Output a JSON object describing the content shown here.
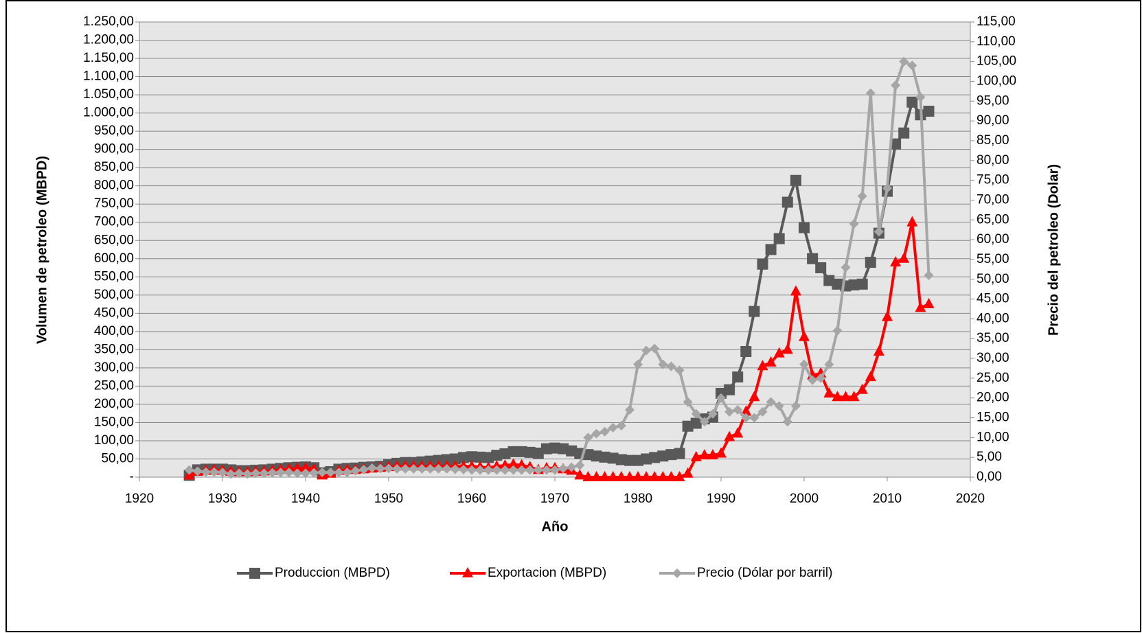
{
  "chart_data": {
    "type": "line",
    "xlabel": "Año",
    "ylabel": "Volumen de petroleo (MBPD)",
    "y2label": "Precio del petroleo (Dolar)",
    "x": [
      1926,
      1927,
      1928,
      1929,
      1930,
      1931,
      1932,
      1933,
      1934,
      1935,
      1936,
      1937,
      1938,
      1939,
      1940,
      1941,
      1942,
      1943,
      1944,
      1945,
      1946,
      1947,
      1948,
      1949,
      1950,
      1951,
      1952,
      1953,
      1954,
      1955,
      1956,
      1957,
      1958,
      1959,
      1960,
      1961,
      1962,
      1963,
      1964,
      1965,
      1966,
      1967,
      1968,
      1969,
      1970,
      1971,
      1972,
      1973,
      1974,
      1975,
      1976,
      1977,
      1978,
      1979,
      1980,
      1981,
      1982,
      1983,
      1984,
      1985,
      1986,
      1987,
      1988,
      1989,
      1990,
      1991,
      1992,
      1993,
      1994,
      1995,
      1996,
      1997,
      1998,
      1999,
      2000,
      2001,
      2002,
      2003,
      2004,
      2005,
      2006,
      2007,
      2008,
      2009,
      2010,
      2011,
      2012,
      2013,
      2014,
      2015
    ],
    "series": [
      {
        "name": "Produccion (MBPD)",
        "color": "#595959",
        "marker": "square",
        "values": [
          5,
          20,
          22,
          22,
          22,
          20,
          18,
          18,
          19,
          20,
          22,
          24,
          26,
          27,
          28,
          26,
          12,
          15,
          22,
          24,
          25,
          27,
          28,
          30,
          34,
          38,
          40,
          40,
          42,
          44,
          46,
          48,
          50,
          54,
          56,
          55,
          54,
          60,
          64,
          70,
          70,
          68,
          66,
          78,
          80,
          78,
          72,
          65,
          62,
          58,
          55,
          52,
          48,
          46,
          46,
          50,
          54,
          58,
          62,
          65,
          140,
          148,
          160,
          165,
          230,
          240,
          275,
          345,
          455,
          585,
          625,
          655,
          755,
          815,
          685,
          600,
          575,
          540,
          530,
          525,
          528,
          530,
          590,
          670,
          785,
          915,
          945,
          1030,
          995,
          1005
        ]
      },
      {
        "name": "Exportacion (MBPD)",
        "color": "#ff0000",
        "marker": "triangle",
        "values": [
          5,
          15,
          18,
          20,
          18,
          15,
          14,
          14,
          15,
          16,
          18,
          20,
          22,
          24,
          25,
          22,
          5,
          10,
          18,
          20,
          20,
          22,
          24,
          26,
          28,
          30,
          30,
          30,
          30,
          30,
          30,
          30,
          30,
          30,
          30,
          28,
          26,
          30,
          32,
          35,
          33,
          28,
          20,
          25,
          25,
          22,
          18,
          5,
          0,
          0,
          0,
          0,
          0,
          0,
          0,
          0,
          0,
          0,
          0,
          0,
          10,
          55,
          60,
          60,
          65,
          110,
          120,
          180,
          220,
          305,
          315,
          340,
          350,
          510,
          385,
          280,
          285,
          230,
          220,
          220,
          220,
          240,
          275,
          345,
          440,
          590,
          600,
          700,
          465,
          475
        ]
      },
      {
        "name": "Precio (Dólar por barril)",
        "color": "#a6a6a6",
        "marker": "diamond",
        "axis": "y2",
        "values": [
          1.8,
          1.5,
          1.3,
          1.3,
          1.2,
          0.8,
          1,
          0.8,
          1,
          1,
          1.1,
          1.2,
          1.2,
          1,
          1,
          1.1,
          1.2,
          1.2,
          1.2,
          1.2,
          1.6,
          1.9,
          2.3,
          2.2,
          2.2,
          2.1,
          2.1,
          2.1,
          2.1,
          2.1,
          2.1,
          2.1,
          2,
          1.9,
          1.8,
          1.8,
          1.8,
          1.8,
          1.8,
          1.8,
          1.8,
          1.8,
          1.8,
          1.8,
          1.8,
          2.2,
          2.5,
          3,
          10,
          11,
          11.5,
          12.5,
          13,
          17,
          28.5,
          32,
          32.5,
          28.5,
          28,
          27,
          19,
          16,
          14,
          16,
          20,
          16.5,
          17,
          15,
          15,
          16.5,
          19,
          18,
          14,
          18,
          28.5,
          24.5,
          25,
          28.5,
          37,
          53,
          64,
          71,
          97,
          62,
          73,
          99,
          105,
          104,
          96,
          51
        ]
      }
    ],
    "xlim": [
      1920,
      2020
    ],
    "xticks": [
      1920,
      1930,
      1940,
      1950,
      1960,
      1970,
      1980,
      1990,
      2000,
      2010,
      2020
    ],
    "ylim": [
      0,
      1250
    ],
    "yticks": [
      {
        "value": 0,
        "label": "-"
      },
      {
        "value": 50,
        "label": "50,00"
      },
      {
        "value": 100,
        "label": "100,00"
      },
      {
        "value": 150,
        "label": "150,00"
      },
      {
        "value": 200,
        "label": "200,00"
      },
      {
        "value": 250,
        "label": "250,00"
      },
      {
        "value": 300,
        "label": "300,00"
      },
      {
        "value": 350,
        "label": "350,00"
      },
      {
        "value": 400,
        "label": "400,00"
      },
      {
        "value": 450,
        "label": "450,00"
      },
      {
        "value": 500,
        "label": "500,00"
      },
      {
        "value": 550,
        "label": "550,00"
      },
      {
        "value": 600,
        "label": "600,00"
      },
      {
        "value": 650,
        "label": "650,00"
      },
      {
        "value": 700,
        "label": "700,00"
      },
      {
        "value": 750,
        "label": "750,00"
      },
      {
        "value": 800,
        "label": "800,00"
      },
      {
        "value": 850,
        "label": "850,00"
      },
      {
        "value": 900,
        "label": "900,00"
      },
      {
        "value": 950,
        "label": "950,00"
      },
      {
        "value": 1000,
        "label": "1.000,00"
      },
      {
        "value": 1050,
        "label": "1.050,00"
      },
      {
        "value": 1100,
        "label": "1.100,00"
      },
      {
        "value": 1150,
        "label": "1.150,00"
      },
      {
        "value": 1200,
        "label": "1.200,00"
      },
      {
        "value": 1250,
        "label": "1.250,00"
      }
    ],
    "y2lim": [
      0,
      115
    ],
    "y2ticks": [
      {
        "value": 0,
        "label": "0,00"
      },
      {
        "value": 5,
        "label": "5,00"
      },
      {
        "value": 10,
        "label": "10,00"
      },
      {
        "value": 15,
        "label": "15,00"
      },
      {
        "value": 20,
        "label": "20,00"
      },
      {
        "value": 25,
        "label": "25,00"
      },
      {
        "value": 30,
        "label": "30,00"
      },
      {
        "value": 35,
        "label": "35,00"
      },
      {
        "value": 40,
        "label": "40,00"
      },
      {
        "value": 45,
        "label": "45,00"
      },
      {
        "value": 50,
        "label": "50,00"
      },
      {
        "value": 55,
        "label": "55,00"
      },
      {
        "value": 60,
        "label": "60,00"
      },
      {
        "value": 65,
        "label": "65,00"
      },
      {
        "value": 70,
        "label": "70,00"
      },
      {
        "value": 75,
        "label": "75,00"
      },
      {
        "value": 80,
        "label": "80,00"
      },
      {
        "value": 85,
        "label": "85,00"
      },
      {
        "value": 90,
        "label": "90,00"
      },
      {
        "value": 95,
        "label": "95,00"
      },
      {
        "value": 100,
        "label": "100,00"
      },
      {
        "value": 105,
        "label": "105,00"
      },
      {
        "value": 110,
        "label": "110,00"
      },
      {
        "value": 115,
        "label": "115,00"
      }
    ],
    "grid": true,
    "legend": "bottom"
  }
}
